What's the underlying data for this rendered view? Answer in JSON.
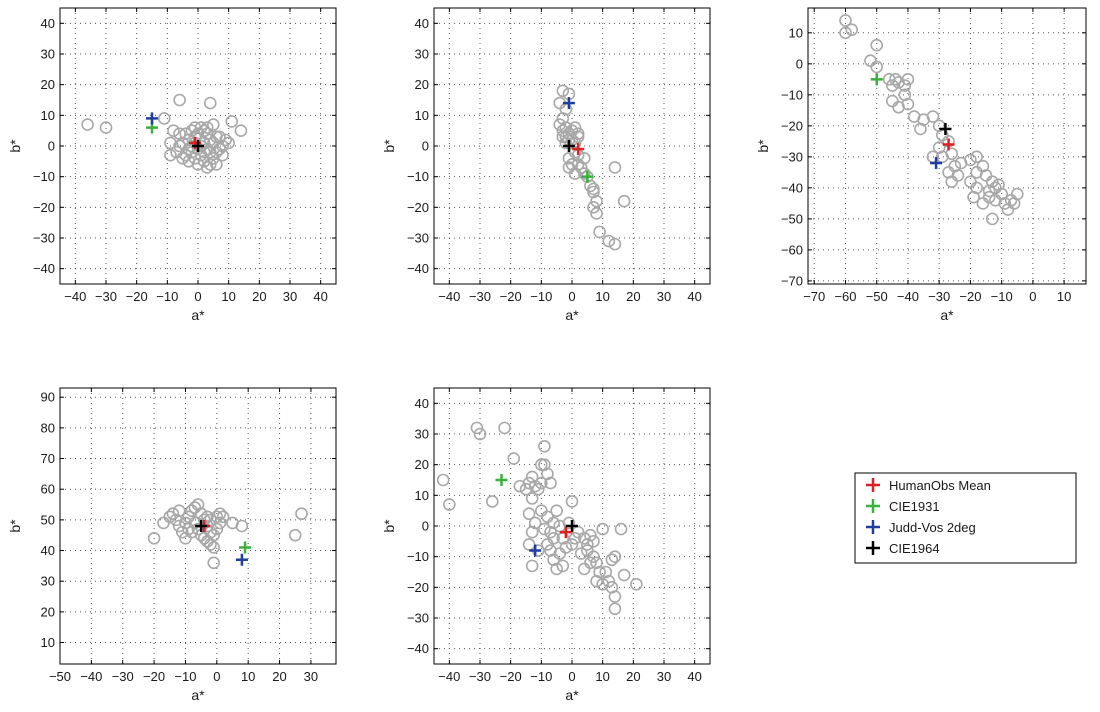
{
  "legend": {
    "entries": [
      {
        "name": "HumanObs Mean",
        "color": "#e02020"
      },
      {
        "name": "CIE1931",
        "color": "#3cb03c"
      },
      {
        "name": "Judd-Vos 2deg",
        "color": "#1f3f9f"
      },
      {
        "name": "CIE1964",
        "color": "#000000"
      }
    ]
  },
  "chart_data": [
    {
      "type": "scatter",
      "xlabel": "a*",
      "ylabel": "b*",
      "xlim": [
        -45,
        45
      ],
      "ylim": [
        -45,
        45
      ],
      "xticks": [
        -40,
        -30,
        -20,
        -10,
        0,
        10,
        20,
        30,
        40
      ],
      "yticks": [
        -40,
        -30,
        -20,
        -10,
        0,
        10,
        20,
        30,
        40
      ],
      "grid": true,
      "observers": [
        [
          -36,
          7
        ],
        [
          -30,
          6
        ],
        [
          -11,
          9
        ],
        [
          -6,
          15
        ],
        [
          4,
          14
        ],
        [
          11,
          8
        ],
        [
          14,
          5
        ],
        [
          -8,
          5
        ],
        [
          -6,
          4
        ],
        [
          -5,
          1
        ],
        [
          -9,
          1
        ],
        [
          -7,
          -2
        ],
        [
          -9,
          -3
        ],
        [
          -4,
          -3
        ],
        [
          -3,
          -5
        ],
        [
          -2,
          -2
        ],
        [
          -1,
          -4
        ],
        [
          0,
          -1
        ],
        [
          1,
          -3
        ],
        [
          2,
          -5
        ],
        [
          3,
          -7
        ],
        [
          4,
          -6
        ],
        [
          5,
          -4
        ],
        [
          6,
          -2
        ],
        [
          7,
          -1
        ],
        [
          8,
          0
        ],
        [
          9,
          2
        ],
        [
          10,
          1
        ],
        [
          8,
          -3
        ],
        [
          6,
          -6
        ],
        [
          5,
          1
        ],
        [
          4,
          2
        ],
        [
          3,
          4
        ],
        [
          2,
          5
        ],
        [
          1,
          6
        ],
        [
          0,
          4
        ],
        [
          -1,
          3
        ],
        [
          -2,
          5
        ],
        [
          -3,
          2
        ],
        [
          -4,
          4
        ],
        [
          -2,
          0
        ],
        [
          -3,
          -1
        ],
        [
          -1,
          1
        ],
        [
          1,
          0
        ],
        [
          2,
          1
        ],
        [
          3,
          -1
        ],
        [
          4,
          -2
        ],
        [
          2,
          -2
        ],
        [
          0,
          -6
        ],
        [
          -1,
          6
        ],
        [
          3,
          6
        ],
        [
          6,
          3
        ],
        [
          -5,
          -4
        ],
        [
          5,
          7
        ],
        [
          7,
          3
        ],
        [
          -6,
          0
        ]
      ],
      "points": {
        "HumanObs Mean": [
          -1,
          1
        ],
        "CIE1931": [
          -15,
          6
        ],
        "Judd-Vos 2deg": [
          -15,
          9
        ],
        "CIE1964": [
          0,
          0
        ]
      }
    },
    {
      "type": "scatter",
      "xlabel": "a*",
      "ylabel": "b*",
      "xlim": [
        -45,
        45
      ],
      "ylim": [
        -45,
        45
      ],
      "xticks": [
        -40,
        -30,
        -20,
        -10,
        0,
        10,
        20,
        30,
        40
      ],
      "yticks": [
        -40,
        -30,
        -20,
        -10,
        0,
        10,
        20,
        30,
        40
      ],
      "grid": true,
      "observers": [
        [
          -3,
          18
        ],
        [
          -1,
          17
        ],
        [
          -4,
          14
        ],
        [
          -2,
          12
        ],
        [
          -3,
          9
        ],
        [
          -4,
          7
        ],
        [
          -3,
          5
        ],
        [
          -2,
          6
        ],
        [
          -1,
          4
        ],
        [
          0,
          5
        ],
        [
          1,
          6
        ],
        [
          2,
          4
        ],
        [
          -2,
          3
        ],
        [
          -1,
          2
        ],
        [
          0,
          2
        ],
        [
          1,
          1
        ],
        [
          2,
          3
        ],
        [
          -3,
          3
        ],
        [
          -2,
          1
        ],
        [
          1,
          -2
        ],
        [
          2,
          -3
        ],
        [
          -1,
          -4
        ],
        [
          0,
          -6
        ],
        [
          2,
          -6
        ],
        [
          3,
          -7
        ],
        [
          4,
          -9
        ],
        [
          5,
          -10
        ],
        [
          6,
          -13
        ],
        [
          7,
          -15
        ],
        [
          8,
          -18
        ],
        [
          7,
          -20
        ],
        [
          8,
          -22
        ],
        [
          9,
          -28
        ],
        [
          12,
          -31
        ],
        [
          14,
          -32
        ],
        [
          17,
          -18
        ],
        [
          14,
          -7
        ],
        [
          7,
          -14
        ],
        [
          4,
          -4
        ],
        [
          -1,
          -7
        ],
        [
          1,
          -9
        ]
      ],
      "points": {
        "HumanObs Mean": [
          2,
          -1
        ],
        "CIE1931": [
          5,
          -10
        ],
        "Judd-Vos 2deg": [
          -1,
          14
        ],
        "CIE1964": [
          -1,
          0
        ]
      }
    },
    {
      "type": "scatter",
      "xlabel": "a*",
      "ylabel": "b*",
      "xlim": [
        -72,
        17
      ],
      "ylim": [
        -71,
        18
      ],
      "xticks": [
        -70,
        -60,
        -50,
        -40,
        -30,
        -20,
        -10,
        0,
        10
      ],
      "yticks": [
        -70,
        -60,
        -50,
        -40,
        -30,
        -20,
        -10,
        0,
        10
      ],
      "grid": true,
      "observers": [
        [
          -60,
          14
        ],
        [
          -60,
          10
        ],
        [
          -58,
          11
        ],
        [
          -50,
          6
        ],
        [
          -52,
          1
        ],
        [
          -50,
          -1
        ],
        [
          -46,
          -5
        ],
        [
          -45,
          -7
        ],
        [
          -44,
          -5
        ],
        [
          -43,
          -6
        ],
        [
          -41,
          -7
        ],
        [
          -40,
          -5
        ],
        [
          -41,
          -10
        ],
        [
          -40,
          -13
        ],
        [
          -45,
          -12
        ],
        [
          -43,
          -14
        ],
        [
          -38,
          -17
        ],
        [
          -35,
          -18
        ],
        [
          -36,
          -21
        ],
        [
          -32,
          -17
        ],
        [
          -30,
          -20
        ],
        [
          -29,
          -23
        ],
        [
          -27,
          -25
        ],
        [
          -30,
          -27
        ],
        [
          -32,
          -30
        ],
        [
          -29,
          -30
        ],
        [
          -26,
          -29
        ],
        [
          -25,
          -33
        ],
        [
          -27,
          -35
        ],
        [
          -26,
          -38
        ],
        [
          -24,
          -36
        ],
        [
          -23,
          -32
        ],
        [
          -20,
          -31
        ],
        [
          -18,
          -30
        ],
        [
          -16,
          -33
        ],
        [
          -18,
          -35
        ],
        [
          -20,
          -38
        ],
        [
          -18,
          -40
        ],
        [
          -15,
          -36
        ],
        [
          -13,
          -38
        ],
        [
          -14,
          -41
        ],
        [
          -12,
          -44
        ],
        [
          -10,
          -42
        ],
        [
          -12,
          -40
        ],
        [
          -14,
          -43
        ],
        [
          -16,
          -45
        ],
        [
          -13,
          -50
        ],
        [
          -9,
          -45
        ],
        [
          -8,
          -47
        ],
        [
          -6,
          -45
        ],
        [
          -5,
          -42
        ],
        [
          -7,
          -44
        ],
        [
          -19,
          -43
        ],
        [
          -11,
          -39
        ]
      ],
      "points": {
        "HumanObs Mean": [
          -27,
          -26
        ],
        "CIE1931": [
          -50,
          -5
        ],
        "Judd-Vos 2deg": [
          -31,
          -32
        ],
        "CIE1964": [
          -28,
          -21
        ]
      }
    },
    {
      "type": "scatter",
      "xlabel": "a*",
      "ylabel": "b*",
      "xlim": [
        -50,
        38
      ],
      "ylim": [
        3,
        93
      ],
      "xticks": [
        -50,
        -40,
        -30,
        -20,
        -10,
        0,
        10,
        20,
        30
      ],
      "yticks": [
        10,
        20,
        30,
        40,
        50,
        60,
        70,
        80,
        90
      ],
      "grid": true,
      "observers": [
        [
          -20,
          44
        ],
        [
          -17,
          49
        ],
        [
          -15,
          51
        ],
        [
          -14,
          52
        ],
        [
          -13,
          50
        ],
        [
          -12,
          48
        ],
        [
          -11,
          46
        ],
        [
          -10,
          49
        ],
        [
          -9,
          51
        ],
        [
          -8,
          53
        ],
        [
          -7,
          54
        ],
        [
          -6,
          55
        ],
        [
          -5,
          52
        ],
        [
          -4,
          50
        ],
        [
          -3,
          48
        ],
        [
          -2,
          46
        ],
        [
          -1,
          45
        ],
        [
          0,
          47
        ],
        [
          1,
          49
        ],
        [
          2,
          51
        ],
        [
          -10,
          44
        ],
        [
          -8,
          46
        ],
        [
          -6,
          47
        ],
        [
          -5,
          45
        ],
        [
          -4,
          44
        ],
        [
          -3,
          43
        ],
        [
          -2,
          42
        ],
        [
          -1,
          41
        ],
        [
          -3,
          51
        ],
        [
          -7,
          49
        ],
        [
          0,
          51
        ],
        [
          1,
          52
        ],
        [
          5,
          49
        ],
        [
          8,
          48
        ],
        [
          -1,
          36
        ],
        [
          25,
          45
        ],
        [
          27,
          52
        ],
        [
          -12,
          53
        ],
        [
          -9,
          47
        ],
        [
          -2,
          50
        ]
      ],
      "points": {
        "HumanObs Mean": [
          -4,
          48
        ],
        "CIE1931": [
          9,
          41
        ],
        "Judd-Vos 2deg": [
          8,
          37
        ],
        "CIE1964": [
          -5,
          48
        ]
      }
    },
    {
      "type": "scatter",
      "xlabel": "a*",
      "ylabel": "b*",
      "xlim": [
        -45,
        45
      ],
      "ylim": [
        -45,
        45
      ],
      "xticks": [
        -40,
        -30,
        -20,
        -10,
        0,
        10,
        20,
        30,
        40
      ],
      "yticks": [
        -40,
        -30,
        -20,
        -10,
        0,
        10,
        20,
        30,
        40
      ],
      "grid": true,
      "observers": [
        [
          -42,
          15
        ],
        [
          -40,
          7
        ],
        [
          -31,
          32
        ],
        [
          -30,
          30
        ],
        [
          -22,
          32
        ],
        [
          -26,
          8
        ],
        [
          -19,
          22
        ],
        [
          -9,
          26
        ],
        [
          -10,
          20
        ],
        [
          -9,
          20
        ],
        [
          -8,
          17
        ],
        [
          -13,
          16
        ],
        [
          -14,
          14
        ],
        [
          -12,
          13
        ],
        [
          -10,
          14
        ],
        [
          -11,
          12
        ],
        [
          -15,
          12
        ],
        [
          -17,
          13
        ],
        [
          -13,
          9
        ],
        [
          -7,
          14
        ],
        [
          -14,
          4
        ],
        [
          -10,
          5
        ],
        [
          -8,
          3
        ],
        [
          -12,
          1
        ],
        [
          -9,
          -1
        ],
        [
          -7,
          -2
        ],
        [
          -6,
          -4
        ],
        [
          -13,
          -2
        ],
        [
          -14,
          -6
        ],
        [
          -11,
          -8
        ],
        [
          -8,
          -6
        ],
        [
          -7,
          -8
        ],
        [
          -6,
          -11
        ],
        [
          -4,
          -9
        ],
        [
          -5,
          -14
        ],
        [
          -3,
          -13
        ],
        [
          -2,
          -7
        ],
        [
          -3,
          -4
        ],
        [
          0,
          -6
        ],
        [
          1,
          -4
        ],
        [
          2,
          -2
        ],
        [
          4,
          -4
        ],
        [
          5,
          -6
        ],
        [
          6,
          -3
        ],
        [
          7,
          -5
        ],
        [
          5,
          -8
        ],
        [
          7,
          -10
        ],
        [
          6,
          -12
        ],
        [
          4,
          -14
        ],
        [
          8,
          -12
        ],
        [
          9,
          -15
        ],
        [
          8,
          -18
        ],
        [
          10,
          -19
        ],
        [
          12,
          -18
        ],
        [
          13,
          -20
        ],
        [
          14,
          -23
        ],
        [
          14,
          -27
        ],
        [
          17,
          -16
        ],
        [
          21,
          -19
        ],
        [
          10,
          -1
        ],
        [
          16,
          -1
        ],
        [
          13,
          -11
        ],
        [
          14,
          -10
        ],
        [
          -5,
          5
        ],
        [
          0,
          8
        ],
        [
          -1,
          1
        ],
        [
          -13,
          -13
        ],
        [
          -4,
          0
        ],
        [
          -6,
          1
        ],
        [
          3,
          -9
        ],
        [
          11,
          -15
        ]
      ],
      "points": {
        "HumanObs Mean": [
          -2,
          -2
        ],
        "CIE1931": [
          -23,
          15
        ],
        "Judd-Vos 2deg": [
          -12,
          -8
        ],
        "CIE1964": [
          0,
          0
        ]
      }
    }
  ]
}
